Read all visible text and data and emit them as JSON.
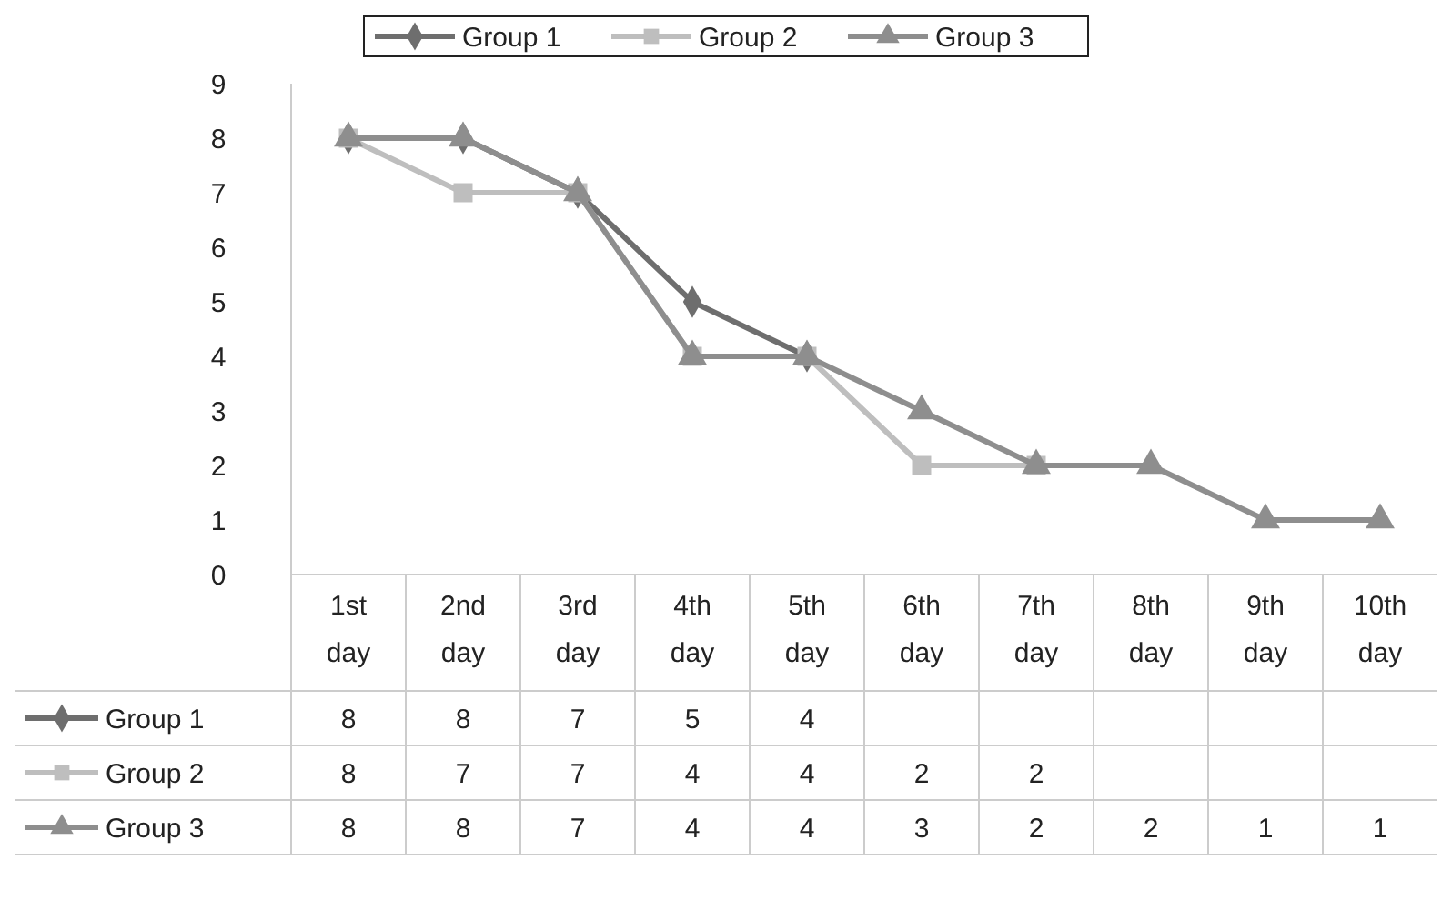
{
  "chart_data": {
    "type": "line",
    "categories": [
      "1st day",
      "2nd day",
      "3rd day",
      "4th day",
      "5th day",
      "6th day",
      "7th day",
      "8th day",
      "9th day",
      "10th day"
    ],
    "series": [
      {
        "name": "Group 1",
        "color": "#6e6e6e",
        "marker": "diamond",
        "values": [
          8,
          8,
          7,
          5,
          4,
          null,
          null,
          null,
          null,
          null
        ]
      },
      {
        "name": "Group 2",
        "color": "#bebebe",
        "marker": "square",
        "values": [
          8,
          7,
          7,
          4,
          4,
          2,
          2,
          null,
          null,
          null
        ]
      },
      {
        "name": "Group 3",
        "color": "#8e8e8e",
        "marker": "triangle",
        "values": [
          8,
          8,
          7,
          4,
          4,
          3,
          2,
          2,
          1,
          1
        ]
      }
    ],
    "ylim": [
      0,
      9
    ],
    "yticks": [
      0,
      1,
      2,
      3,
      4,
      5,
      6,
      7,
      8,
      9
    ],
    "legend": "top",
    "data_labels": true,
    "grid": false
  }
}
